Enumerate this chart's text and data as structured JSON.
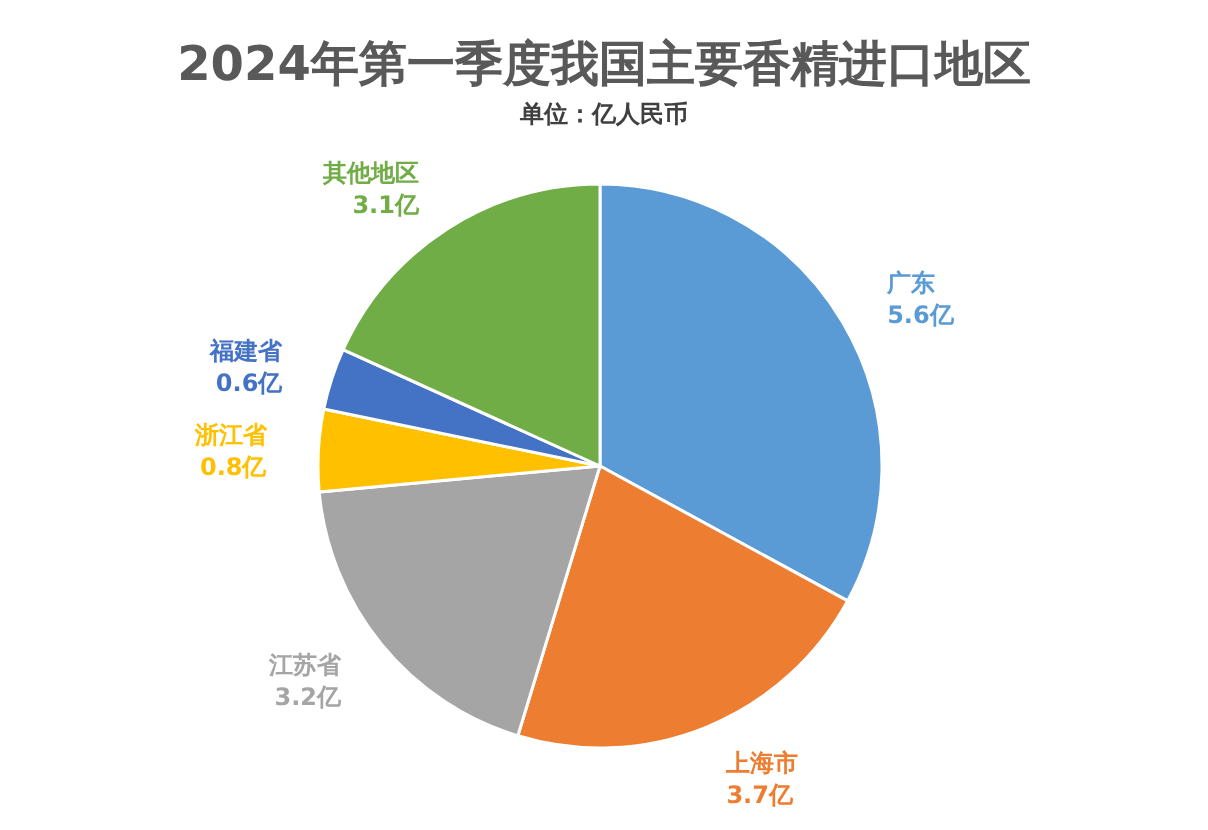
{
  "chart_data": {
    "type": "pie",
    "title": "2024年第一季度我国主要香精进口地区",
    "subtitle": "单位：亿人民币",
    "categories": [
      "广东",
      "上海市",
      "江苏省",
      "浙江省",
      "福建省",
      "其他地区"
    ],
    "values": [
      5.6,
      3.7,
      3.2,
      0.8,
      0.6,
      3.1
    ],
    "colors": [
      "#5b9bd5",
      "#ed7d31",
      "#a5a5a5",
      "#ffc000",
      "#4472c4",
      "#70ad47"
    ],
    "value_labels": [
      "5.6亿",
      "3.7亿",
      "3.2亿",
      "0.8亿",
      "0.6亿",
      "3.1亿"
    ]
  }
}
